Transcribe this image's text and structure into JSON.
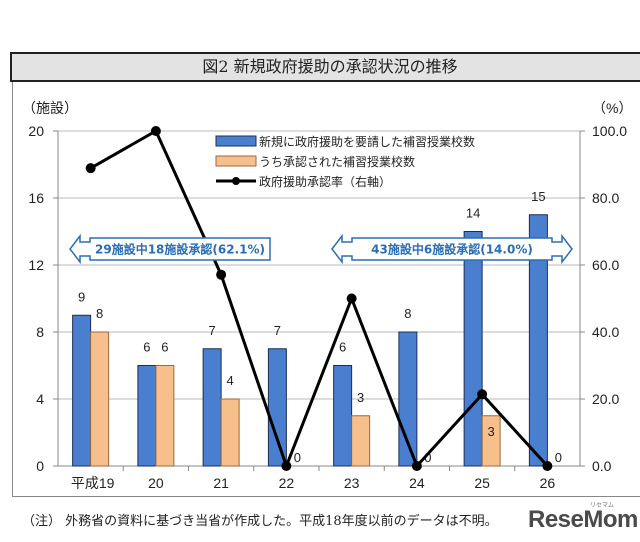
{
  "title": "図2 新規政府援助の承認状況の推移",
  "note": "（注） 外務省の資料に基づき当省が作成した。平成18年度以前のデータは不明。",
  "watermark": "ReseMom",
  "watermark_sub": "リセマム",
  "left_axis_unit": "（施設）",
  "right_axis_unit": "（%）",
  "callouts": {
    "left": "29施設中18施設承認(62.1%)",
    "right": "43施設中6施設承認(14.0%)"
  },
  "colors": {
    "blue": "#4a7fd0",
    "orange": "#f7bf8c",
    "line": "#000000",
    "callout": "#2a6fb3",
    "grid": "#bbbbbb"
  },
  "chart_data": {
    "type": "bar",
    "title": "図2 新規政府援助の承認状況の推移",
    "xlabel": "",
    "ylabel": "施設",
    "y2label": "%",
    "categories": [
      "平成19",
      "20",
      "21",
      "22",
      "23",
      "24",
      "25",
      "26"
    ],
    "series": [
      {
        "name": "新規に政府援助を要請した補習授業校数",
        "type": "bar",
        "axis": "left",
        "values": [
          9,
          6,
          7,
          7,
          6,
          8,
          14,
          15
        ]
      },
      {
        "name": "うち承認された補習授業校数",
        "type": "bar",
        "axis": "left",
        "values": [
          8,
          6,
          4,
          0,
          3,
          0,
          3,
          0
        ]
      },
      {
        "name": "政府援助承認率（右軸）",
        "type": "line",
        "axis": "right",
        "values": [
          88.9,
          100.0,
          57.1,
          0.0,
          50.0,
          0.0,
          21.4,
          0.0
        ]
      }
    ],
    "ylim": [
      0,
      20
    ],
    "yticks": [
      0,
      4,
      8,
      12,
      16,
      20
    ],
    "y2lim": [
      0,
      100
    ],
    "y2ticks": [
      "0.0",
      "20.0",
      "40.0",
      "60.0",
      "80.0",
      "100.0"
    ],
    "bar_labels_blue": [
      "9",
      "6",
      "7",
      "7",
      "6",
      "8",
      "14",
      "15"
    ],
    "bar_labels_orange": [
      "8",
      "6",
      "4",
      "0",
      "3",
      "0",
      "3",
      "0"
    ],
    "grid": true,
    "legend_position": "top-right inside",
    "annotations": [
      "29施設中18施設承認(62.1%)",
      "43施設中6施設承認(14.0%)"
    ]
  }
}
